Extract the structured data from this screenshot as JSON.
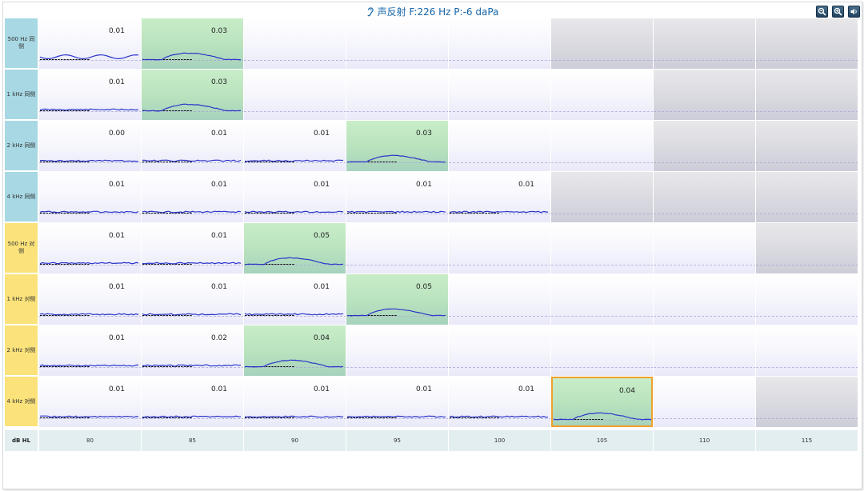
{
  "header": {
    "title": "声反射  F:226 Hz P:-6 daPa",
    "icons": [
      "ear-icon",
      "zoom-out-icon",
      "zoom-in-icon",
      "speaker-icon"
    ]
  },
  "colors": {
    "ipsilateral": "#a7d8e3",
    "contralateral": "#fbe27a",
    "response": "#b8e2bd",
    "not_tested": "#d9d9e0",
    "selected_border": "#f0a02c",
    "trace": "#2b35c9",
    "title": "#1565a9"
  },
  "x_axis": {
    "unit": "dB HL",
    "levels": [
      "80",
      "85",
      "90",
      "95",
      "100",
      "105",
      "110",
      "115"
    ]
  },
  "rows": [
    {
      "label": "500 Hz 同侧",
      "side": "ipsi",
      "cells": [
        {
          "value": "0.01",
          "state": "tested"
        },
        {
          "value": "0.03",
          "state": "response"
        },
        {
          "value": "",
          "state": "empty"
        },
        {
          "value": "",
          "state": "empty"
        },
        {
          "value": "",
          "state": "empty"
        },
        {
          "value": "",
          "state": "not_tested"
        },
        {
          "value": "",
          "state": "not_tested"
        },
        {
          "value": "",
          "state": "not_tested"
        }
      ]
    },
    {
      "label": "1 kHz 同侧",
      "side": "ipsi",
      "cells": [
        {
          "value": "0.01",
          "state": "tested"
        },
        {
          "value": "0.03",
          "state": "response"
        },
        {
          "value": "",
          "state": "empty"
        },
        {
          "value": "",
          "state": "empty"
        },
        {
          "value": "",
          "state": "empty"
        },
        {
          "value": "",
          "state": "empty"
        },
        {
          "value": "",
          "state": "not_tested"
        },
        {
          "value": "",
          "state": "not_tested"
        }
      ]
    },
    {
      "label": "2 kHz 同侧",
      "side": "ipsi",
      "cells": [
        {
          "value": "0.00",
          "state": "tested"
        },
        {
          "value": "0.01",
          "state": "tested"
        },
        {
          "value": "0.01",
          "state": "tested"
        },
        {
          "value": "0.03",
          "state": "response"
        },
        {
          "value": "",
          "state": "empty"
        },
        {
          "value": "",
          "state": "empty"
        },
        {
          "value": "",
          "state": "not_tested"
        },
        {
          "value": "",
          "state": "not_tested"
        }
      ]
    },
    {
      "label": "4 kHz 同侧",
      "side": "ipsi",
      "cells": [
        {
          "value": "0.01",
          "state": "tested"
        },
        {
          "value": "0.01",
          "state": "tested"
        },
        {
          "value": "0.01",
          "state": "tested"
        },
        {
          "value": "0.01",
          "state": "tested"
        },
        {
          "value": "0.01",
          "state": "tested"
        },
        {
          "value": "",
          "state": "not_tested"
        },
        {
          "value": "",
          "state": "not_tested"
        },
        {
          "value": "",
          "state": "not_tested"
        }
      ]
    },
    {
      "label": "500 Hz 对侧",
      "side": "contra",
      "cells": [
        {
          "value": "0.01",
          "state": "tested"
        },
        {
          "value": "0.01",
          "state": "tested"
        },
        {
          "value": "0.05",
          "state": "response"
        },
        {
          "value": "",
          "state": "empty"
        },
        {
          "value": "",
          "state": "empty"
        },
        {
          "value": "",
          "state": "empty"
        },
        {
          "value": "",
          "state": "empty"
        },
        {
          "value": "",
          "state": "not_tested"
        }
      ]
    },
    {
      "label": "1 kHz 对侧",
      "side": "contra",
      "cells": [
        {
          "value": "0.01",
          "state": "tested"
        },
        {
          "value": "0.01",
          "state": "tested"
        },
        {
          "value": "0.01",
          "state": "tested"
        },
        {
          "value": "0.05",
          "state": "response"
        },
        {
          "value": "",
          "state": "empty"
        },
        {
          "value": "",
          "state": "empty"
        },
        {
          "value": "",
          "state": "empty"
        },
        {
          "value": "",
          "state": "empty"
        }
      ]
    },
    {
      "label": "2 kHz 对侧",
      "side": "contra",
      "cells": [
        {
          "value": "0.01",
          "state": "tested"
        },
        {
          "value": "0.02",
          "state": "tested"
        },
        {
          "value": "0.04",
          "state": "response"
        },
        {
          "value": "",
          "state": "empty"
        },
        {
          "value": "",
          "state": "empty"
        },
        {
          "value": "",
          "state": "empty"
        },
        {
          "value": "",
          "state": "empty"
        },
        {
          "value": "",
          "state": "empty"
        }
      ]
    },
    {
      "label": "4 kHz 对侧",
      "side": "contra",
      "cells": [
        {
          "value": "0.01",
          "state": "tested"
        },
        {
          "value": "0.01",
          "state": "tested"
        },
        {
          "value": "0.01",
          "state": "tested"
        },
        {
          "value": "0.01",
          "state": "tested"
        },
        {
          "value": "0.01",
          "state": "tested"
        },
        {
          "value": "0.04",
          "state": "response",
          "selected": true
        },
        {
          "value": "",
          "state": "empty"
        },
        {
          "value": "",
          "state": "not_tested"
        }
      ]
    }
  ]
}
